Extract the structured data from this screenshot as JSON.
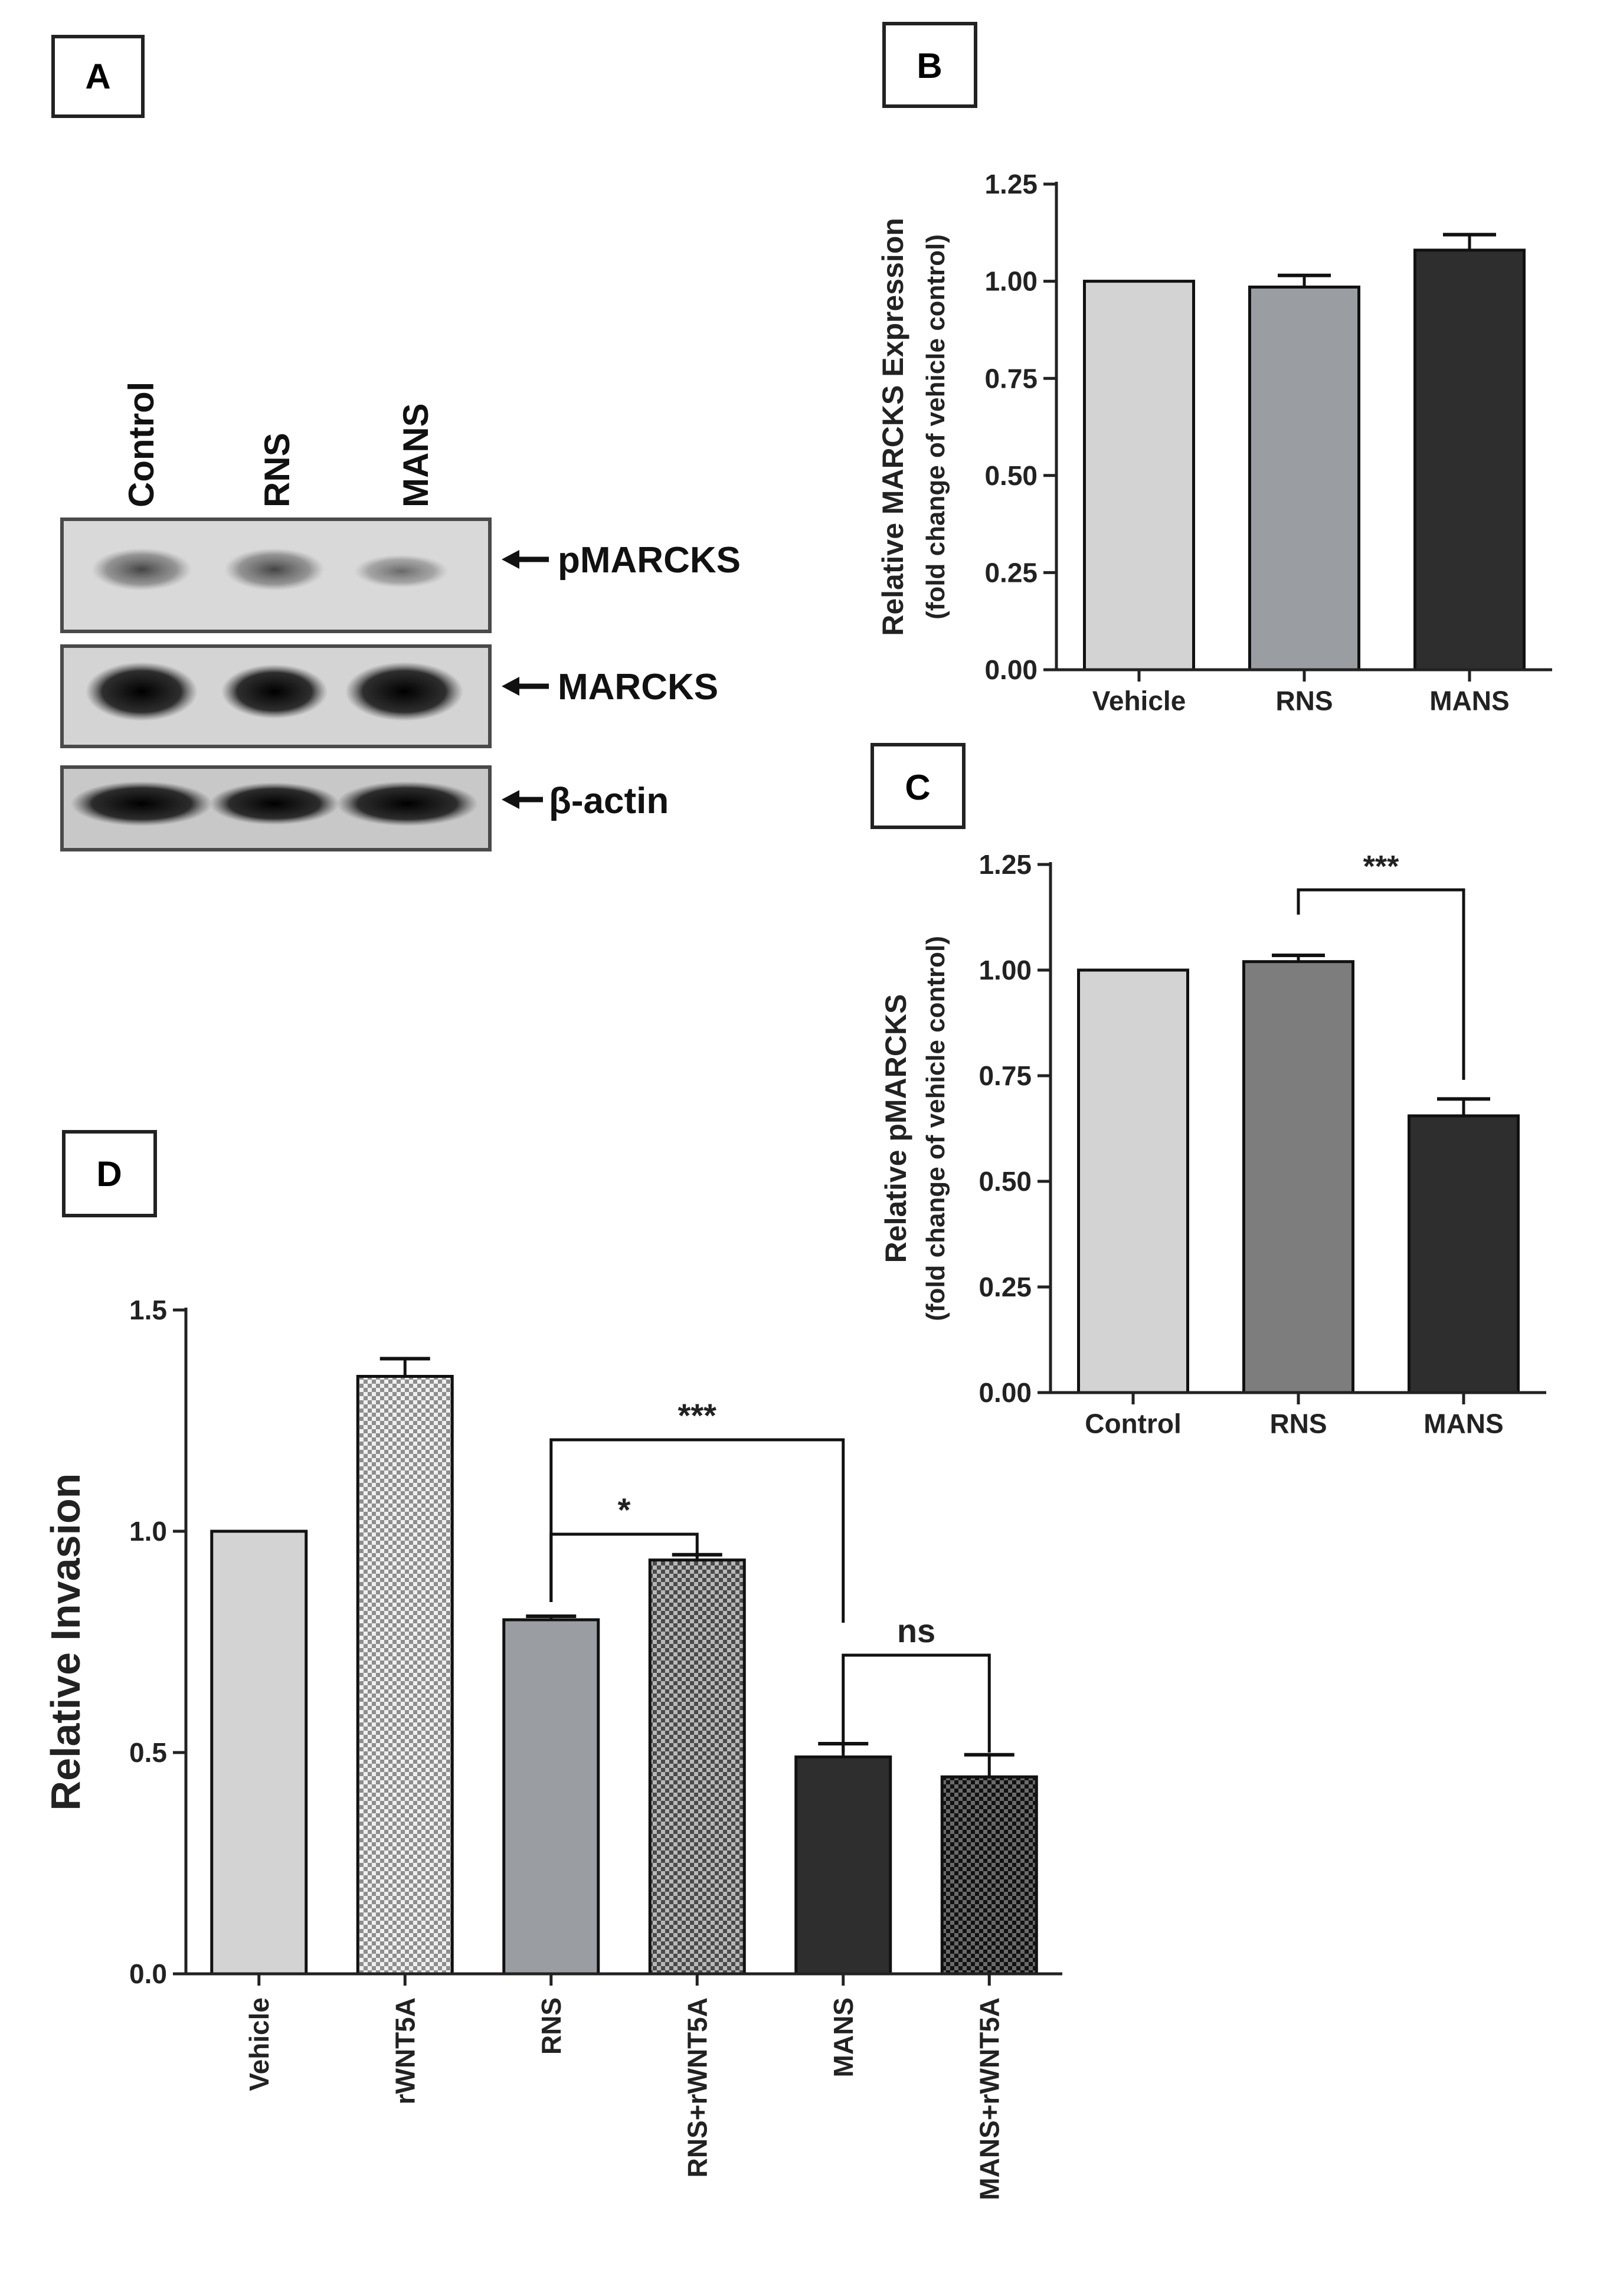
{
  "panels": {
    "a": "A",
    "b": "B",
    "c": "C",
    "d": "D"
  },
  "western_blot": {
    "lanes": [
      "Control",
      "RNS",
      "MANS"
    ],
    "bands": [
      "pMARCKS",
      "MARCKS",
      "β-actin"
    ]
  },
  "colors": {
    "light_gray": "#d3d3d3",
    "mid_gray": "#9a9ea3",
    "mid_gray_c": "#7d7d7d",
    "dark": "#2e2e2e",
    "axis": "#222222"
  },
  "chart_data": [
    {
      "panel": "B",
      "type": "bar",
      "categories": [
        "Vehicle",
        "RNS",
        "MANS"
      ],
      "values": [
        1.0,
        0.985,
        1.08
      ],
      "errors": [
        0,
        0.03,
        0.04
      ],
      "ylabel_line1": "Relative MARCKS Expression",
      "ylabel_line2": "(fold change of vehicle control)",
      "ylim": [
        0,
        1.25
      ],
      "yticks": [
        "0.00",
        "0.25",
        "0.50",
        "0.75",
        "1.00",
        "1.25"
      ],
      "bar_colors": [
        "#d3d3d3",
        "#9a9ea3",
        "#2e2e2e"
      ],
      "significance": []
    },
    {
      "panel": "C",
      "type": "bar",
      "categories": [
        "Control",
        "RNS",
        "MANS"
      ],
      "values": [
        1.0,
        1.02,
        0.655
      ],
      "errors": [
        0,
        0.015,
        0.04
      ],
      "ylabel_line1": "Relative pMARCKS",
      "ylabel_line2": "(fold change of vehicle control)",
      "ylim": [
        0,
        1.25
      ],
      "yticks": [
        "0.00",
        "0.25",
        "0.50",
        "0.75",
        "1.00",
        "1.25"
      ],
      "bar_colors": [
        "#d3d3d3",
        "#7d7d7d",
        "#2e2e2e"
      ],
      "significance": [
        {
          "from": 1,
          "to": 2,
          "label": "***"
        }
      ]
    },
    {
      "panel": "D",
      "type": "bar",
      "categories": [
        "Vehicle",
        "rWNT5A",
        "RNS",
        "RNS+rWNT5A",
        "MANS",
        "MANS+rWNT5A"
      ],
      "values": [
        1.0,
        1.35,
        0.8,
        0.935,
        0.49,
        0.445
      ],
      "errors": [
        0,
        0.04,
        0.008,
        0.012,
        0.03,
        0.05
      ],
      "ylabel": "Relative Invasion",
      "ylim": [
        0,
        1.5
      ],
      "yticks": [
        "0.0",
        "0.5",
        "1.0",
        "1.5"
      ],
      "bar_colors": [
        "#d3d3d3",
        "#dcdcdc",
        "#9a9ea3",
        "#8a8a8a",
        "#2e2e2e",
        "#3a3a3a"
      ],
      "bar_patterns": [
        "solid",
        "check",
        "solid",
        "check",
        "solid",
        "check"
      ],
      "significance": [
        {
          "from": 2,
          "to": 4,
          "label": "***"
        },
        {
          "from": 2,
          "to": 3,
          "label": "*"
        },
        {
          "from": 4,
          "to": 5,
          "label": "ns"
        }
      ]
    }
  ]
}
